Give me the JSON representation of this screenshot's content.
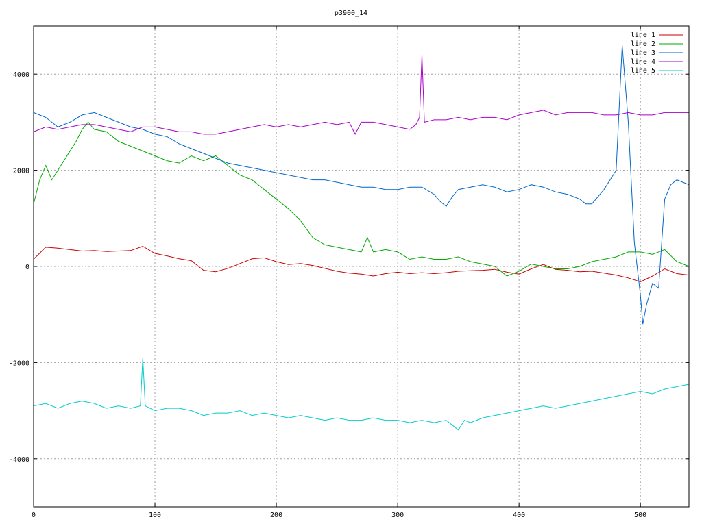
{
  "chart_data": {
    "type": "line",
    "title": "p3900_14",
    "xlabel": "",
    "ylabel": "",
    "xlim": [
      0,
      540
    ],
    "ylim": [
      -5000,
      5000
    ],
    "x_ticks": [
      0,
      100,
      200,
      300,
      400,
      500
    ],
    "y_ticks": [
      -4000,
      -2000,
      0,
      2000,
      4000
    ],
    "grid": true,
    "legend_position": "top-right",
    "series": [
      {
        "name": "line 1",
        "color": "#cc0000",
        "x": [
          0,
          10,
          20,
          30,
          40,
          50,
          60,
          70,
          80,
          90,
          100,
          110,
          120,
          130,
          140,
          150,
          160,
          170,
          180,
          190,
          200,
          210,
          220,
          230,
          240,
          250,
          260,
          270,
          280,
          290,
          300,
          310,
          320,
          330,
          340,
          350,
          360,
          370,
          380,
          390,
          400,
          410,
          420,
          430,
          440,
          450,
          460,
          470,
          480,
          490,
          500,
          510,
          520,
          530,
          540
        ],
        "y": [
          150,
          400,
          380,
          350,
          320,
          330,
          310,
          320,
          330,
          420,
          270,
          220,
          160,
          120,
          -80,
          -110,
          -40,
          60,
          160,
          180,
          100,
          40,
          60,
          20,
          -40,
          -100,
          -140,
          -160,
          -200,
          -150,
          -120,
          -150,
          -130,
          -150,
          -130,
          -100,
          -90,
          -80,
          -60,
          -120,
          -160,
          -50,
          40,
          -60,
          -80,
          -110,
          -100,
          -140,
          -180,
          -240,
          -320,
          -200,
          -50,
          -150,
          -180
        ]
      },
      {
        "name": "line 2",
        "color": "#00aa00",
        "x": [
          0,
          5,
          10,
          15,
          20,
          25,
          30,
          35,
          40,
          45,
          50,
          60,
          70,
          80,
          90,
          100,
          110,
          120,
          130,
          140,
          150,
          160,
          170,
          180,
          190,
          200,
          210,
          220,
          230,
          240,
          250,
          260,
          270,
          275,
          280,
          290,
          300,
          310,
          320,
          330,
          340,
          350,
          360,
          370,
          380,
          390,
          400,
          410,
          420,
          430,
          440,
          450,
          460,
          470,
          480,
          490,
          500,
          510,
          520,
          530,
          540
        ],
        "y": [
          1300,
          1800,
          2100,
          1800,
          2000,
          2200,
          2400,
          2600,
          2850,
          3000,
          2850,
          2800,
          2600,
          2500,
          2400,
          2300,
          2200,
          2150,
          2300,
          2200,
          2300,
          2100,
          1900,
          1800,
          1600,
          1400,
          1200,
          950,
          600,
          450,
          400,
          350,
          300,
          600,
          300,
          350,
          300,
          150,
          200,
          150,
          150,
          200,
          100,
          50,
          0,
          -200,
          -100,
          50,
          0,
          -50,
          -50,
          0,
          100,
          150,
          200,
          300,
          300,
          250,
          350,
          100,
          0
        ]
      },
      {
        "name": "line 3",
        "color": "#0066cc",
        "x": [
          0,
          10,
          20,
          30,
          40,
          50,
          60,
          70,
          80,
          90,
          100,
          110,
          120,
          130,
          140,
          150,
          160,
          170,
          180,
          190,
          200,
          210,
          220,
          230,
          240,
          250,
          260,
          270,
          280,
          290,
          300,
          310,
          320,
          330,
          335,
          340,
          345,
          350,
          360,
          370,
          380,
          390,
          400,
          410,
          420,
          430,
          440,
          450,
          455,
          460,
          470,
          480,
          485,
          490,
          495,
          500,
          502,
          505,
          510,
          515,
          520,
          525,
          530,
          535,
          540
        ],
        "y": [
          3200,
          3100,
          2900,
          3000,
          3150,
          3200,
          3100,
          3000,
          2900,
          2850,
          2750,
          2700,
          2550,
          2450,
          2350,
          2250,
          2150,
          2100,
          2050,
          2000,
          1950,
          1900,
          1850,
          1800,
          1800,
          1750,
          1700,
          1650,
          1650,
          1600,
          1600,
          1650,
          1650,
          1500,
          1350,
          1250,
          1450,
          1600,
          1650,
          1700,
          1650,
          1550,
          1600,
          1700,
          1650,
          1550,
          1500,
          1400,
          1300,
          1300,
          1600,
          2000,
          4600,
          3000,
          500,
          -600,
          -1200,
          -800,
          -350,
          -450,
          1400,
          1700,
          1800,
          1750,
          1700
        ]
      },
      {
        "name": "line 4",
        "color": "#aa00cc",
        "x": [
          0,
          10,
          20,
          30,
          40,
          50,
          60,
          70,
          80,
          90,
          100,
          110,
          120,
          130,
          140,
          150,
          160,
          170,
          180,
          190,
          200,
          210,
          220,
          230,
          240,
          250,
          260,
          265,
          270,
          280,
          290,
          300,
          310,
          315,
          318,
          320,
          322,
          330,
          340,
          350,
          360,
          370,
          380,
          390,
          400,
          410,
          420,
          430,
          440,
          450,
          460,
          470,
          480,
          490,
          500,
          510,
          520,
          530,
          540
        ],
        "y": [
          2800,
          2900,
          2850,
          2900,
          2950,
          2950,
          2900,
          2850,
          2800,
          2900,
          2900,
          2850,
          2800,
          2800,
          2750,
          2750,
          2800,
          2850,
          2900,
          2950,
          2900,
          2950,
          2900,
          2950,
          3000,
          2950,
          3000,
          2750,
          3000,
          3000,
          2950,
          2900,
          2850,
          2950,
          3100,
          4400,
          3000,
          3050,
          3050,
          3100,
          3050,
          3100,
          3100,
          3050,
          3150,
          3200,
          3250,
          3150,
          3200,
          3200,
          3200,
          3150,
          3150,
          3200,
          3150,
          3150,
          3200,
          3200,
          3200
        ]
      },
      {
        "name": "line 5",
        "color": "#00cccc",
        "x": [
          0,
          10,
          20,
          30,
          40,
          50,
          60,
          70,
          80,
          88,
          90,
          92,
          100,
          110,
          120,
          130,
          140,
          150,
          160,
          170,
          180,
          190,
          200,
          210,
          220,
          230,
          240,
          250,
          260,
          270,
          280,
          290,
          300,
          310,
          320,
          330,
          340,
          345,
          350,
          355,
          360,
          370,
          380,
          390,
          400,
          410,
          420,
          430,
          440,
          450,
          460,
          470,
          480,
          490,
          500,
          510,
          520,
          530,
          540
        ],
        "y": [
          -2900,
          -2850,
          -2950,
          -2850,
          -2800,
          -2850,
          -2950,
          -2900,
          -2950,
          -2900,
          -1900,
          -2900,
          -3000,
          -2950,
          -2950,
          -3000,
          -3100,
          -3050,
          -3050,
          -3000,
          -3100,
          -3050,
          -3100,
          -3150,
          -3100,
          -3150,
          -3200,
          -3150,
          -3200,
          -3200,
          -3150,
          -3200,
          -3200,
          -3250,
          -3200,
          -3250,
          -3200,
          -3300,
          -3400,
          -3200,
          -3250,
          -3150,
          -3100,
          -3050,
          -3000,
          -2950,
          -2900,
          -2950,
          -2900,
          -2850,
          -2800,
          -2750,
          -2700,
          -2650,
          -2600,
          -2650,
          -2550,
          -2500,
          -2450
        ]
      }
    ]
  }
}
